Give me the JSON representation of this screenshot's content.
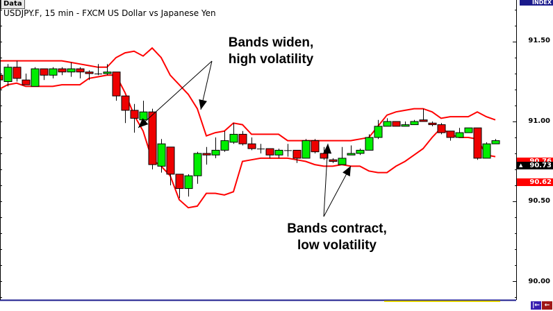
{
  "window": {
    "tab_label": "Data",
    "title": "USDJPY.F, 15 min - FXCM US Dollar vs Japanese Yen"
  },
  "axis_header": "INDEX",
  "price_tags": [
    {
      "label": "90.76",
      "color": "#ff0000"
    },
    {
      "label": "90.73",
      "color": "#000000"
    },
    {
      "label": "90.62",
      "color": "#ff0000"
    }
  ],
  "annotations": {
    "widen": {
      "line1": "Bands widen,",
      "line2": "high volatility"
    },
    "contract": {
      "line1": "Bands contract,",
      "line2": "low volatility"
    }
  },
  "nav_buttons": [
    {
      "icon": "jump-to-start-icon",
      "glyph": "|←"
    },
    {
      "icon": "scroll-left-icon",
      "glyph": "←"
    }
  ],
  "colors": {
    "up": "#00ee00",
    "down": "#ee0000",
    "bands": "#ff0000",
    "axis_header": "#1a1a8c"
  },
  "chart_data": {
    "type": "candlestick",
    "title": "USDJPY.F, 15 min - FXCM US Dollar vs Japanese Yen",
    "ylim": [
      89.95,
      91.87
    ],
    "y_ticks": [
      "91.50",
      "91.00",
      "90.50",
      "90.00"
    ],
    "grid": false,
    "ohlc": [
      [
        91.29,
        91.3,
        91.25,
        91.26
      ],
      [
        91.25,
        91.36,
        91.22,
        91.34
      ],
      [
        91.34,
        91.38,
        91.25,
        91.27
      ],
      [
        91.26,
        91.3,
        91.23,
        91.23
      ],
      [
        91.22,
        91.34,
        91.22,
        91.33
      ],
      [
        91.33,
        91.33,
        91.26,
        91.29
      ],
      [
        91.29,
        91.34,
        91.27,
        91.33
      ],
      [
        91.33,
        91.34,
        91.29,
        91.31
      ],
      [
        91.31,
        91.37,
        91.28,
        91.33
      ],
      [
        91.33,
        91.34,
        91.27,
        91.31
      ],
      [
        91.31,
        91.32,
        91.26,
        91.3
      ],
      [
        91.3,
        91.36,
        91.29,
        91.3
      ],
      [
        91.3,
        91.36,
        91.29,
        91.31
      ],
      [
        91.31,
        91.31,
        91.13,
        91.16
      ],
      [
        91.16,
        91.16,
        90.99,
        91.07
      ],
      [
        91.07,
        91.11,
        90.93,
        91.02
      ],
      [
        91.01,
        91.13,
        91.01,
        91.06
      ],
      [
        91.06,
        91.08,
        90.7,
        90.73
      ],
      [
        90.72,
        90.89,
        90.68,
        90.86
      ],
      [
        90.84,
        90.84,
        90.6,
        90.67
      ],
      [
        90.67,
        90.67,
        90.52,
        90.58
      ],
      [
        90.58,
        90.67,
        90.53,
        90.66
      ],
      [
        90.66,
        90.81,
        90.61,
        90.8
      ],
      [
        90.8,
        90.84,
        90.73,
        90.79
      ],
      [
        90.79,
        90.9,
        90.77,
        90.82
      ],
      [
        90.82,
        90.94,
        90.81,
        90.88
      ],
      [
        90.87,
        90.99,
        90.86,
        90.92
      ],
      [
        90.92,
        90.94,
        90.85,
        90.86
      ],
      [
        90.86,
        90.9,
        90.82,
        90.83
      ],
      [
        90.83,
        90.86,
        90.8,
        90.83
      ],
      [
        90.83,
        90.83,
        90.77,
        90.79
      ],
      [
        90.79,
        90.83,
        90.77,
        90.82
      ],
      [
        90.82,
        90.86,
        90.78,
        90.82
      ],
      [
        90.82,
        90.82,
        90.74,
        90.77
      ],
      [
        90.77,
        90.89,
        90.77,
        90.88
      ],
      [
        90.88,
        90.89,
        90.8,
        90.81
      ],
      [
        90.8,
        90.84,
        90.76,
        90.77
      ],
      [
        90.76,
        90.77,
        90.74,
        90.75
      ],
      [
        90.73,
        90.84,
        90.73,
        90.77
      ],
      [
        90.79,
        90.85,
        90.79,
        90.8
      ],
      [
        90.8,
        90.83,
        90.79,
        90.82
      ],
      [
        90.82,
        90.92,
        90.82,
        90.9
      ],
      [
        90.9,
        91.01,
        90.89,
        90.97
      ],
      [
        90.97,
        91.02,
        90.97,
        91.0
      ],
      [
        91.0,
        91.0,
        90.97,
        90.97
      ],
      [
        90.97,
        91.0,
        90.97,
        90.98
      ],
      [
        90.98,
        91.01,
        90.98,
        91.0
      ],
      [
        91.01,
        91.08,
        91.0,
        91.0
      ],
      [
        90.99,
        91.0,
        90.97,
        90.98
      ],
      [
        90.98,
        90.99,
        90.92,
        90.93
      ],
      [
        90.94,
        90.94,
        90.88,
        90.9
      ],
      [
        90.9,
        90.96,
        90.9,
        90.93
      ],
      [
        90.93,
        90.96,
        90.93,
        90.96
      ],
      [
        90.96,
        90.96,
        90.76,
        90.77
      ],
      [
        90.77,
        90.87,
        90.77,
        90.86
      ],
      [
        90.86,
        90.89,
        90.86,
        90.88
      ]
    ],
    "upper_band": [
      91.38,
      91.38,
      91.38,
      91.38,
      91.38,
      91.38,
      91.38,
      91.38,
      91.37,
      91.36,
      91.35,
      91.34,
      91.34,
      91.4,
      91.43,
      91.44,
      91.41,
      91.46,
      91.4,
      91.29,
      91.23,
      91.17,
      91.08,
      90.91,
      90.93,
      90.94,
      90.99,
      90.98,
      90.92,
      90.92,
      90.92,
      90.92,
      90.88,
      90.88,
      90.88,
      90.88,
      90.88,
      90.88,
      90.88,
      90.88,
      90.89,
      90.9,
      90.97,
      91.04,
      91.06,
      91.07,
      91.08,
      91.08,
      91.06,
      91.02,
      91.03,
      91.03,
      91.03,
      91.06,
      91.03,
      91.01
    ],
    "lower_band": [
      91.2,
      91.23,
      91.24,
      91.22,
      91.22,
      91.22,
      91.22,
      91.23,
      91.23,
      91.23,
      91.27,
      91.28,
      91.29,
      91.29,
      91.18,
      91.04,
      90.94,
      90.76,
      90.72,
      90.66,
      90.51,
      90.46,
      90.47,
      90.55,
      90.55,
      90.54,
      90.56,
      90.75,
      90.76,
      90.77,
      90.77,
      90.77,
      90.77,
      90.76,
      90.75,
      90.73,
      90.72,
      90.72,
      90.73,
      90.72,
      90.72,
      90.69,
      90.68,
      90.68,
      90.72,
      90.75,
      90.79,
      90.83,
      90.9,
      90.96,
      90.92,
      90.9,
      90.9,
      90.89,
      90.79,
      90.78
    ]
  }
}
